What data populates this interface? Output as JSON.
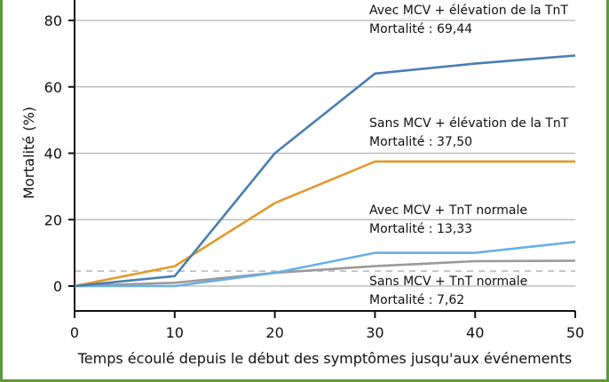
{
  "chart_data": {
    "type": "line",
    "xlabel": "Temps écoulé depuis le début des symptômes jusqu'aux événements",
    "ylabel": "Mortalité (%)",
    "xlim": [
      0,
      50
    ],
    "ylim": [
      -8,
      85
    ],
    "x_ticks": [
      0,
      10,
      20,
      30,
      40,
      50
    ],
    "y_ticks": [
      0,
      20,
      40,
      60,
      80
    ],
    "grid": "horizontal",
    "reference_line_y": 4.5,
    "series": [
      {
        "name": "Avec MCV + élévation de la TnT",
        "mortality_label": "Mortalité : 69,44",
        "color": "#4a7fb3",
        "x": [
          0,
          10,
          20,
          30,
          40,
          50
        ],
        "y": [
          0,
          3,
          40,
          64,
          67,
          69.44
        ]
      },
      {
        "name": "Sans MCV + élévation de la TnT",
        "mortality_label": "Mortalité : 37,50",
        "color": "#e39a2d",
        "x": [
          0,
          10,
          20,
          30,
          40,
          50
        ],
        "y": [
          0,
          6,
          25,
          37.5,
          37.5,
          37.5
        ]
      },
      {
        "name": "Avec MCV + TnT normale",
        "mortality_label": "Mortalité : 13,33",
        "color": "#6aaee6",
        "x": [
          0,
          10,
          20,
          30,
          40,
          50
        ],
        "y": [
          0,
          0,
          4,
          10,
          10,
          13.33
        ]
      },
      {
        "name": "Sans MCV + TnT normale",
        "mortality_label": "Mortalité : 7,62",
        "color": "#9a9a9a",
        "x": [
          0,
          10,
          20,
          30,
          40,
          50
        ],
        "y": [
          0,
          1,
          4,
          6,
          7.5,
          7.62
        ]
      }
    ]
  },
  "colors": {
    "frame": "#5a9a3c",
    "grid": "#b5b5b5",
    "reference_line": "#b5b5b5",
    "axis": "#111111"
  }
}
